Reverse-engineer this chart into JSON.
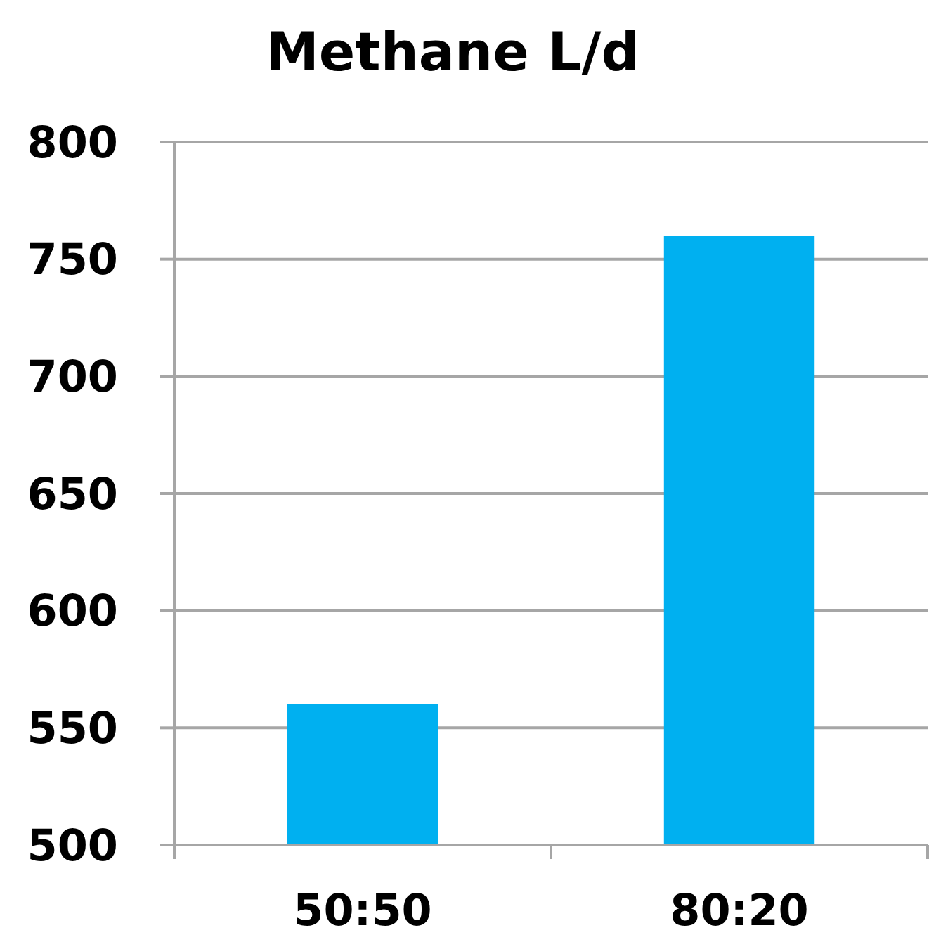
{
  "chart_data": {
    "type": "bar",
    "title": "Methane L/d",
    "categories": [
      "50:50",
      "80:20"
    ],
    "values": [
      560,
      760
    ],
    "color": "#00b0f0",
    "ylim": [
      500,
      800
    ],
    "yticks": [
      500,
      550,
      600,
      650,
      700,
      750,
      800
    ],
    "grid": "y"
  }
}
